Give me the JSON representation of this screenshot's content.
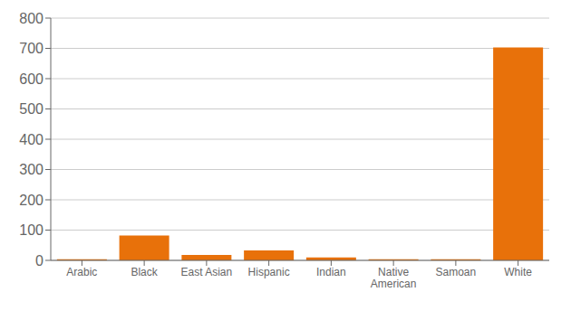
{
  "chart_data": {
    "type": "bar",
    "categories": [
      "Arabic",
      "Black",
      "East Asian",
      "Hispanic",
      "Indian",
      "Native\nAmerican",
      "Samoan",
      "White"
    ],
    "values": [
      4,
      82,
      18,
      33,
      10,
      4,
      4,
      703
    ],
    "color": "#E8710A",
    "ylim": [
      0,
      800
    ],
    "yticks": [
      0,
      100,
      200,
      300,
      400,
      500,
      600,
      700,
      800
    ],
    "grid": true
  }
}
